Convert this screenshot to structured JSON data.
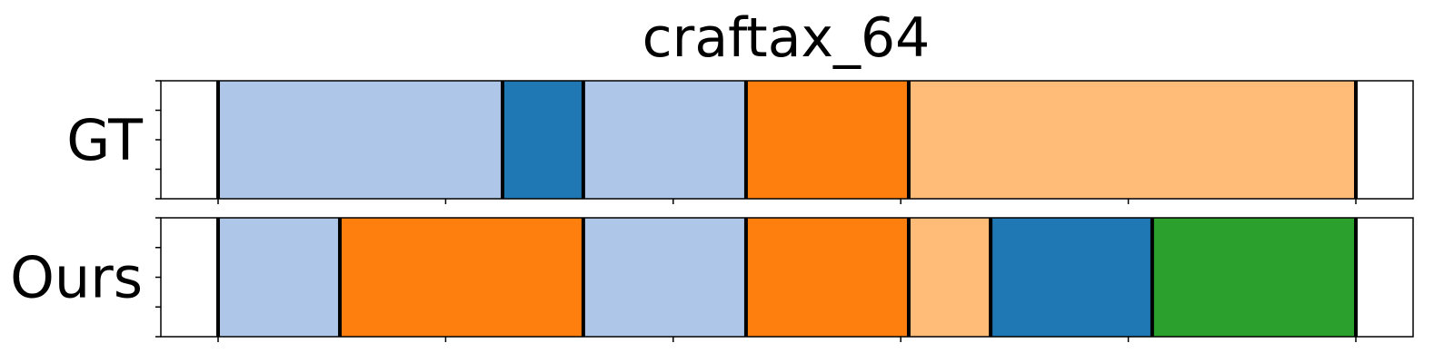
{
  "chart_data": {
    "type": "segmentation_timeline",
    "title": "craftax_64",
    "xlim": [
      0,
      1
    ],
    "ylim": [
      0,
      1
    ],
    "x_ticks": [
      0,
      0.2,
      0.4,
      0.6,
      0.8,
      1.0
    ],
    "x_tick_labels_visible": false,
    "y_ticks_per_row": 5,
    "boundary_color": "#000000",
    "rows": [
      {
        "label": "GT",
        "segments": [
          {
            "start": 0.0,
            "end": 0.25,
            "color": "#aec7e8"
          },
          {
            "start": 0.25,
            "end": 0.321,
            "color": "#1f77b4"
          },
          {
            "start": 0.321,
            "end": 0.464,
            "color": "#aec7e8"
          },
          {
            "start": 0.464,
            "end": 0.607,
            "color": "#ff7f0e"
          },
          {
            "start": 0.607,
            "end": 1.0,
            "color": "#ffbb78"
          }
        ]
      },
      {
        "label": "Ours",
        "segments": [
          {
            "start": 0.0,
            "end": 0.107,
            "color": "#aec7e8"
          },
          {
            "start": 0.107,
            "end": 0.321,
            "color": "#ff7f0e"
          },
          {
            "start": 0.321,
            "end": 0.464,
            "color": "#aec7e8"
          },
          {
            "start": 0.464,
            "end": 0.607,
            "color": "#ff7f0e"
          },
          {
            "start": 0.607,
            "end": 0.679,
            "color": "#ffbb78"
          },
          {
            "start": 0.679,
            "end": 0.821,
            "color": "#1f77b4"
          },
          {
            "start": 0.821,
            "end": 1.0,
            "color": "#2ca02c"
          }
        ]
      }
    ]
  }
}
